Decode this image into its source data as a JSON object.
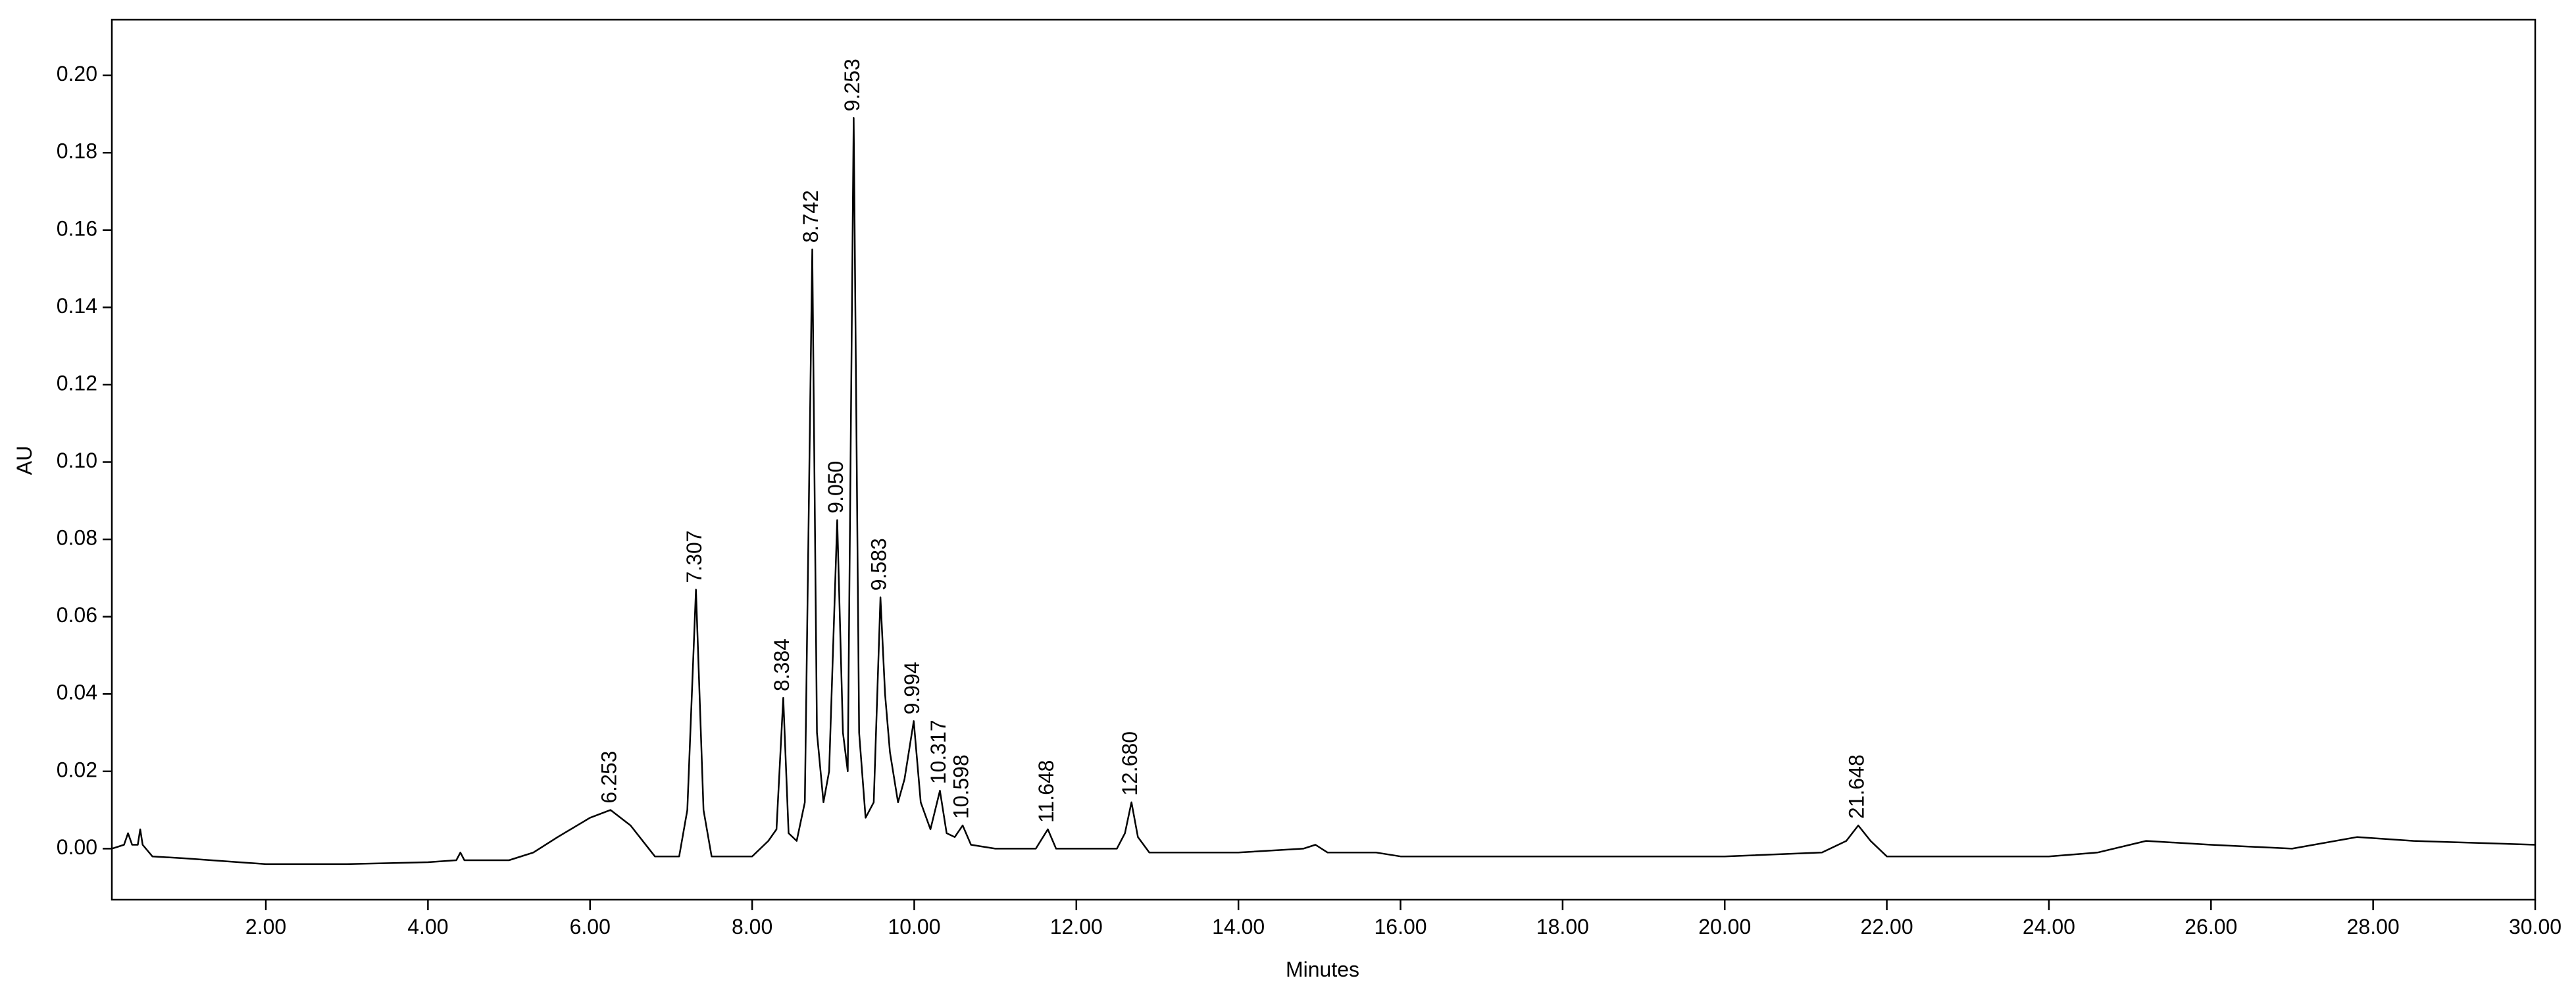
{
  "chart_data": {
    "type": "line",
    "x_label": "Minutes",
    "y_label": "AU",
    "color": "#000000",
    "xlim": [
      0.1,
      30
    ],
    "ylim": [
      -0.0132,
      0.2144
    ],
    "xticks": [
      {
        "value": 2,
        "label": "2.00"
      },
      {
        "value": 4,
        "label": "4.00"
      },
      {
        "value": 6,
        "label": "6.00"
      },
      {
        "value": 8,
        "label": "8.00"
      },
      {
        "value": 10,
        "label": "10.00"
      },
      {
        "value": 12,
        "label": "12.00"
      },
      {
        "value": 14,
        "label": "14.00"
      },
      {
        "value": 16,
        "label": "16.00"
      },
      {
        "value": 18,
        "label": "18.00"
      },
      {
        "value": 20,
        "label": "20.00"
      },
      {
        "value": 22,
        "label": "22.00"
      },
      {
        "value": 24,
        "label": "24.00"
      },
      {
        "value": 26,
        "label": "26.00"
      },
      {
        "value": 28,
        "label": "28.00"
      },
      {
        "value": 30,
        "label": "30.00"
      }
    ],
    "yticks": [
      {
        "value": 0,
        "label": "0.00"
      },
      {
        "value": 0.02,
        "label": "0.02"
      },
      {
        "value": 0.04,
        "label": "0.04"
      },
      {
        "value": 0.06,
        "label": "0.06"
      },
      {
        "value": 0.08,
        "label": "0.08"
      },
      {
        "value": 0.1,
        "label": "0.10"
      },
      {
        "value": 0.12,
        "label": "0.12"
      },
      {
        "value": 0.14,
        "label": "0.14"
      },
      {
        "value": 0.16,
        "label": "0.16"
      },
      {
        "value": 0.18,
        "label": "0.18"
      },
      {
        "value": 0.2,
        "label": "0.20"
      }
    ],
    "x": [
      0.1,
      0.25,
      0.3,
      0.35,
      0.42,
      0.45,
      0.48,
      0.6,
      1.0,
      2.0,
      3.0,
      4.0,
      4.35,
      4.4,
      4.45,
      5.0,
      5.3,
      5.6,
      6.0,
      6.253,
      6.5,
      6.8,
      7.1,
      7.2,
      7.307,
      7.4,
      7.5,
      8.0,
      8.2,
      8.3,
      8.384,
      8.45,
      8.55,
      8.65,
      8.742,
      8.8,
      8.88,
      8.95,
      9.05,
      9.12,
      9.18,
      9.253,
      9.32,
      9.4,
      9.5,
      9.583,
      9.64,
      9.7,
      9.8,
      9.88,
      9.994,
      10.08,
      10.2,
      10.317,
      10.4,
      10.5,
      10.598,
      10.7,
      11.0,
      11.5,
      11.648,
      11.75,
      12.0,
      12.5,
      12.6,
      12.68,
      12.76,
      12.9,
      14.0,
      14.8,
      14.95,
      15.1,
      15.7,
      16.0,
      18.0,
      20.0,
      21.2,
      21.5,
      21.648,
      21.8,
      22.0,
      24.0,
      24.6,
      25.2,
      26.0,
      27.0,
      27.8,
      28.5,
      30.0
    ],
    "values": [
      0.0,
      0.001,
      0.004,
      0.001,
      0.001,
      0.005,
      0.001,
      -0.002,
      -0.0025,
      -0.004,
      -0.004,
      -0.0035,
      -0.003,
      -0.001,
      -0.003,
      -0.003,
      -0.001,
      0.003,
      0.008,
      0.01,
      0.006,
      -0.002,
      -0.002,
      0.01,
      0.067,
      0.01,
      -0.002,
      -0.002,
      0.002,
      0.005,
      0.039,
      0.004,
      0.002,
      0.012,
      0.155,
      0.03,
      0.012,
      0.02,
      0.085,
      0.03,
      0.02,
      0.189,
      0.03,
      0.008,
      0.012,
      0.065,
      0.04,
      0.025,
      0.012,
      0.018,
      0.033,
      0.012,
      0.005,
      0.015,
      0.004,
      0.003,
      0.006,
      0.001,
      0.0,
      0.0,
      0.005,
      0.0,
      0.0,
      0.0,
      0.004,
      0.012,
      0.003,
      -0.001,
      -0.001,
      0.0,
      0.001,
      -0.001,
      -0.001,
      -0.002,
      -0.002,
      -0.002,
      -0.001,
      0.002,
      0.006,
      0.002,
      -0.002,
      -0.002,
      -0.001,
      0.002,
      0.001,
      0.0,
      0.003,
      0.002,
      0.001
    ],
    "annotations": [
      {
        "text": "6.253",
        "x": 6.253,
        "y": 0.01
      },
      {
        "text": "7.307",
        "x": 7.307,
        "y": 0.067
      },
      {
        "text": "8.384",
        "x": 8.384,
        "y": 0.039
      },
      {
        "text": "8.742",
        "x": 8.742,
        "y": 0.155
      },
      {
        "text": "9.050",
        "x": 9.05,
        "y": 0.085
      },
      {
        "text": "9.253",
        "x": 9.253,
        "y": 0.189
      },
      {
        "text": "9.583",
        "x": 9.583,
        "y": 0.065
      },
      {
        "text": "9.994",
        "x": 9.994,
        "y": 0.033
      },
      {
        "text": "10.317",
        "x": 10.317,
        "y": 0.015
      },
      {
        "text": "10.598",
        "x": 10.598,
        "y": 0.006
      },
      {
        "text": "11.648",
        "x": 11.648,
        "y": 0.005
      },
      {
        "text": "12.680",
        "x": 12.68,
        "y": 0.012
      },
      {
        "text": "21.648",
        "x": 21.648,
        "y": 0.006
      }
    ]
  }
}
